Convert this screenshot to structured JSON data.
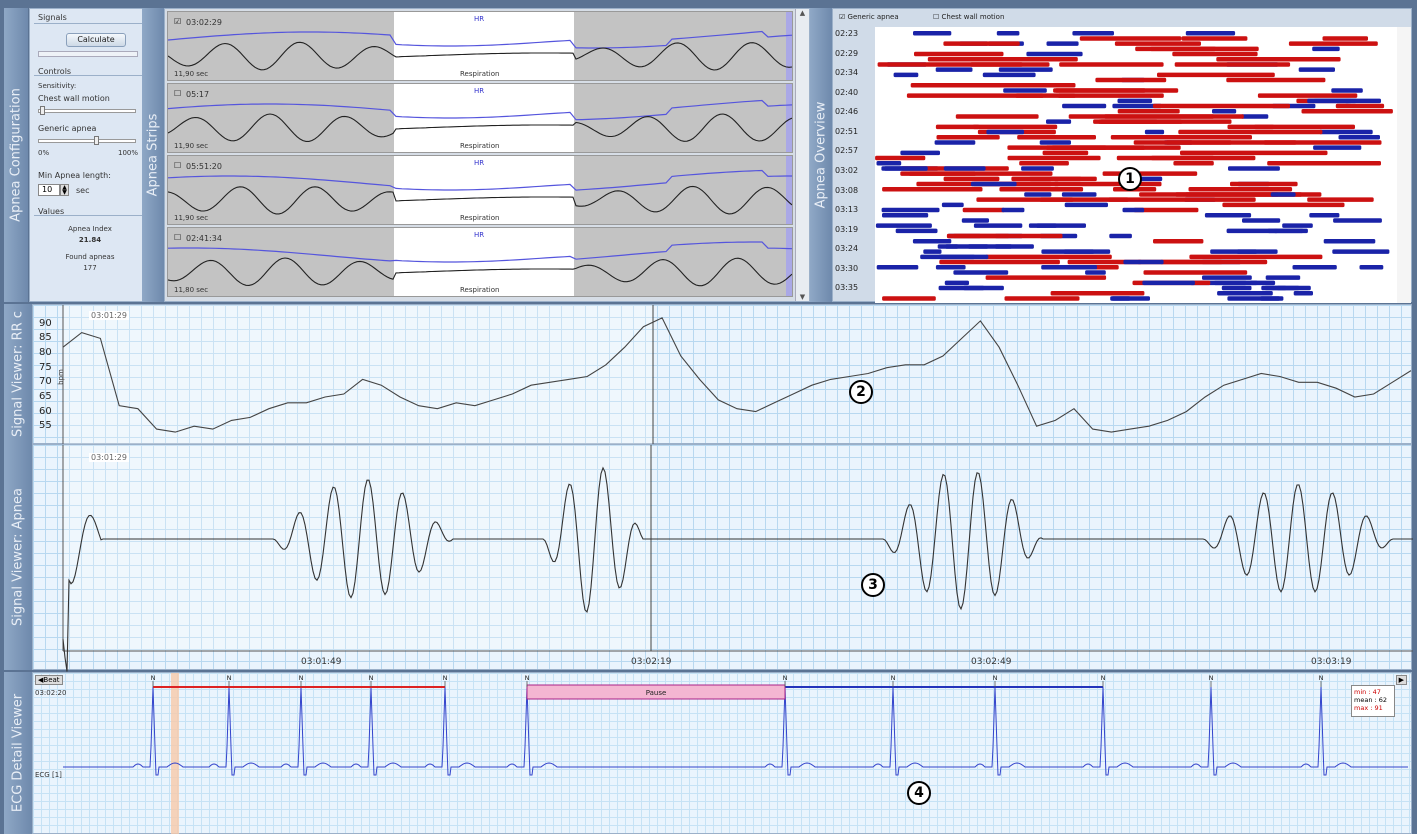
{
  "config": {
    "tab_label": "Apnea Configuration",
    "signals_label": "Signals",
    "calculate_label": "Calculate",
    "controls_label": "Controls",
    "sensitivity_label": "Sensitivity:",
    "chest_wall_label": "Chest wall motion",
    "generic_apnea_label": "Generic apnea",
    "pct_min": "0%",
    "pct_max": "100%",
    "min_length_label": "Min Apnea length:",
    "min_length_value": "10",
    "min_length_unit": "sec",
    "values_label": "Values",
    "apnea_index_label": "Apnea Index",
    "apnea_index_value": "21.84",
    "found_apneas_label": "Found apneas",
    "found_apneas_value": "177",
    "chest_wall_level": 0.02,
    "generic_apnea_level": 0.6
  },
  "strips": {
    "tab_label": "Apnea Strips",
    "hr_label": "HR",
    "resp_label": "Respiration",
    "items": [
      {
        "time": "03:02:29",
        "duration": "11,90 sec",
        "checked": true
      },
      {
        "time": "05:17",
        "duration": "11,90 sec",
        "checked": false
      },
      {
        "time": "05:51:20",
        "duration": "11,90 sec",
        "checked": false
      },
      {
        "time": "02:41:34",
        "duration": "11,80 sec",
        "checked": false
      }
    ]
  },
  "overview": {
    "tab_label": "Apnea Overview",
    "legend_generic": "Generic apnea",
    "legend_chest": "Chest wall motion",
    "times": [
      "02:23",
      "02:29",
      "02:34",
      "02:40",
      "02:46",
      "02:51",
      "02:57",
      "03:02",
      "03:08",
      "03:13",
      "03:19",
      "03:24",
      "03:30",
      "03:35"
    ],
    "marker": "1"
  },
  "rr": {
    "tab_label": "Signal Viewer: RR c",
    "time": "03:01:29",
    "unit": "bpm",
    "yticks": [
      "90",
      "85",
      "80",
      "75",
      "70",
      "65",
      "60",
      "55"
    ],
    "marker": "2",
    "chart_data": {
      "type": "line",
      "ylabel": "bpm",
      "ylim": [
        52,
        93
      ],
      "values": [
        82,
        87,
        85,
        62,
        61,
        54,
        53,
        55,
        54,
        57,
        58,
        61,
        63,
        63,
        65,
        66,
        71,
        69,
        65,
        62,
        61,
        63,
        62,
        64,
        66,
        69,
        70,
        71,
        72,
        76,
        82,
        89,
        92,
        79,
        71,
        64,
        61,
        60,
        63,
        66,
        69,
        71,
        72,
        73,
        75,
        76,
        76,
        79,
        85,
        91,
        82,
        69,
        55,
        57,
        61,
        54,
        53,
        54,
        55,
        57,
        60,
        65,
        69,
        71,
        73,
        72,
        70,
        70,
        68,
        65,
        66,
        70,
        74
      ]
    }
  },
  "apnea": {
    "tab_label": "Signal Viewer: Apnea",
    "time": "03:01:29",
    "xticks": [
      "03:01:49",
      "03:02:19",
      "03:02:49",
      "03:03:19"
    ],
    "marker": "3"
  },
  "ecg": {
    "tab_label": "ECG Detail Viewer",
    "beat_label": "Beat",
    "time": "03:02:20",
    "lead_label": "ECG [1]",
    "beat_marker": "N",
    "pause_label": "Pause",
    "stats": {
      "min": "min : 47",
      "mean": "mean : 62",
      "max": "max : 91"
    },
    "marker": "4"
  }
}
